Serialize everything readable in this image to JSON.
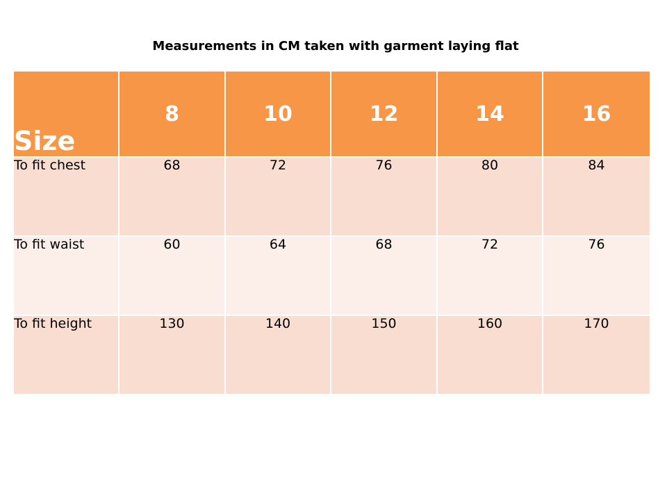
{
  "title": "Measurements in CM taken with garment laying flat",
  "table": {
    "header": {
      "label": "Size",
      "sizes": [
        "8",
        "10",
        "12",
        "14",
        "16"
      ]
    },
    "rows": [
      {
        "label": "To fit chest",
        "values": [
          "68",
          "72",
          "76",
          "80",
          "84"
        ]
      },
      {
        "label": "To fit waist",
        "values": [
          "60",
          "64",
          "68",
          "72",
          "76"
        ]
      },
      {
        "label": "To fit height",
        "values": [
          "130",
          "140",
          "150",
          "160",
          "170"
        ]
      }
    ]
  },
  "colors": {
    "header_bg": "#f79646",
    "row_odd_bg": "#f9ddd1",
    "row_even_bg": "#fcefea"
  }
}
